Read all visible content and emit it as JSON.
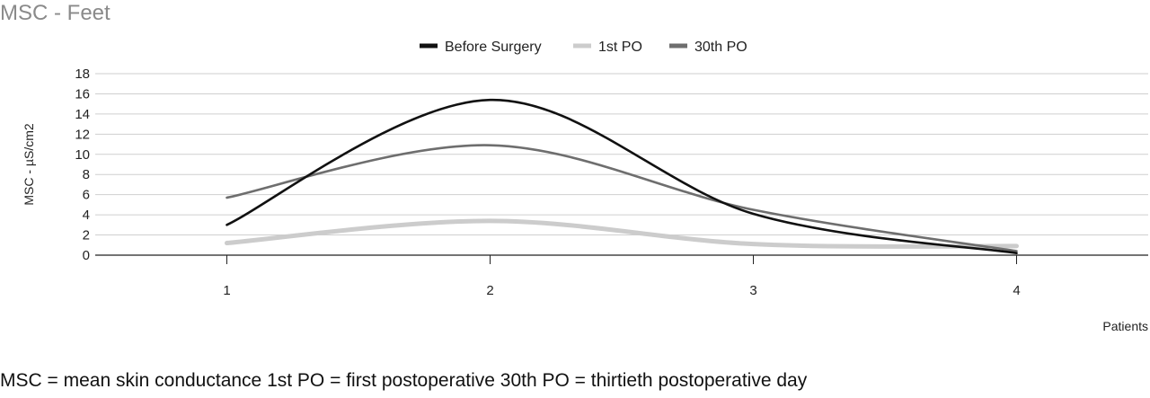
{
  "chart_data": {
    "type": "line",
    "title": "MSC - Feet",
    "xlabel": "Patients",
    "ylabel": "MSC - µS/cm2",
    "x": [
      1,
      2,
      3,
      4
    ],
    "x_tick_labels": [
      "1",
      "2",
      "3",
      "4"
    ],
    "xlim": [
      0.5,
      4.5
    ],
    "ylim": [
      0,
      18
    ],
    "y_ticks": [
      0,
      2,
      4,
      6,
      8,
      10,
      12,
      14,
      16,
      18
    ],
    "grid": true,
    "smooth": true,
    "legend_position": "top-center",
    "series": [
      {
        "name": "Before Surgery",
        "values": [
          3.0,
          15.4,
          4.1,
          0.2
        ],
        "color": "#111111"
      },
      {
        "name": "1st PO",
        "values": [
          1.2,
          3.4,
          1.1,
          0.9
        ],
        "color": "#cccccc"
      },
      {
        "name": "30th PO",
        "values": [
          5.7,
          10.9,
          4.5,
          0.4
        ],
        "color": "#6e6e6e"
      }
    ]
  },
  "footnote": "MSC = mean skin conductance 1st PO = first postoperative 30th PO = thirtieth postoperative day"
}
